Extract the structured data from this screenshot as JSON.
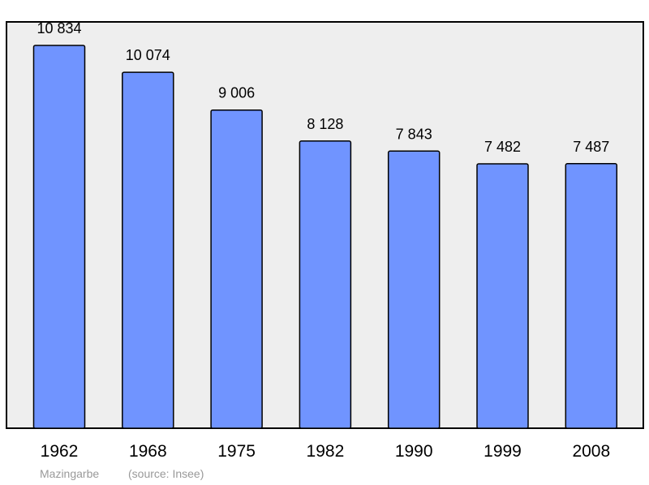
{
  "chart_data": {
    "type": "bar",
    "categories": [
      "1962",
      "1968",
      "1975",
      "1982",
      "1990",
      "1999",
      "2008"
    ],
    "values": [
      10834,
      10074,
      9006,
      8128,
      7843,
      7482,
      7487
    ],
    "value_labels": [
      "10 834",
      "10 074",
      "9 006",
      "8 128",
      "7 843",
      "7 482",
      "7 487"
    ],
    "ylim": [
      0,
      11500
    ],
    "grid": false,
    "colors": {
      "bar_fill": "#7094ff",
      "bar_stroke": "#000000",
      "plot_background": "#eeeeee",
      "caption": "#999999"
    }
  },
  "caption": {
    "place": "Mazingarbe",
    "source": "(source: Insee)"
  }
}
